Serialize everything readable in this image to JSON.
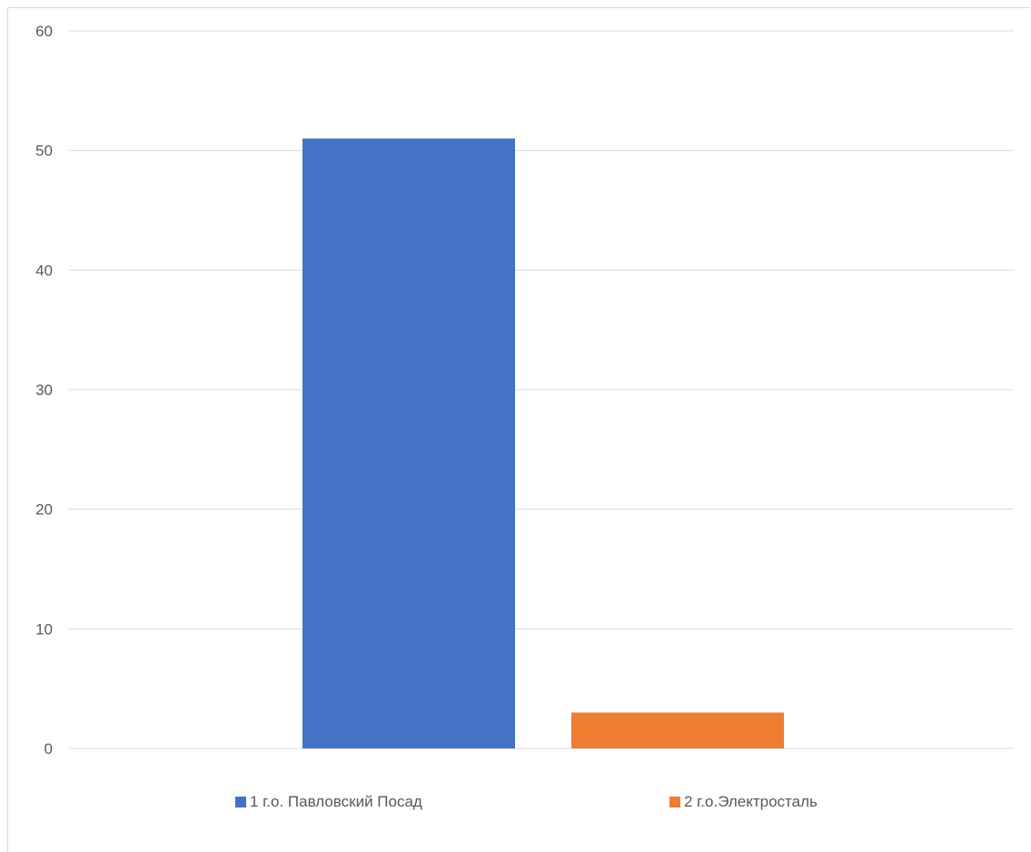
{
  "chart_data": {
    "type": "bar",
    "title": "",
    "xlabel": "",
    "ylabel": "",
    "ylim": [
      0,
      60
    ],
    "yticks": [
      0,
      10,
      20,
      30,
      40,
      50,
      60
    ],
    "grid": true,
    "legend_position": "bottom",
    "series": [
      {
        "name": "1 г.о. Павловский Посад",
        "values": [
          51
        ],
        "color": "#4472C4"
      },
      {
        "name": "2 г.о.Электросталь",
        "values": [
          3
        ],
        "color": "#ED7D31"
      }
    ]
  }
}
